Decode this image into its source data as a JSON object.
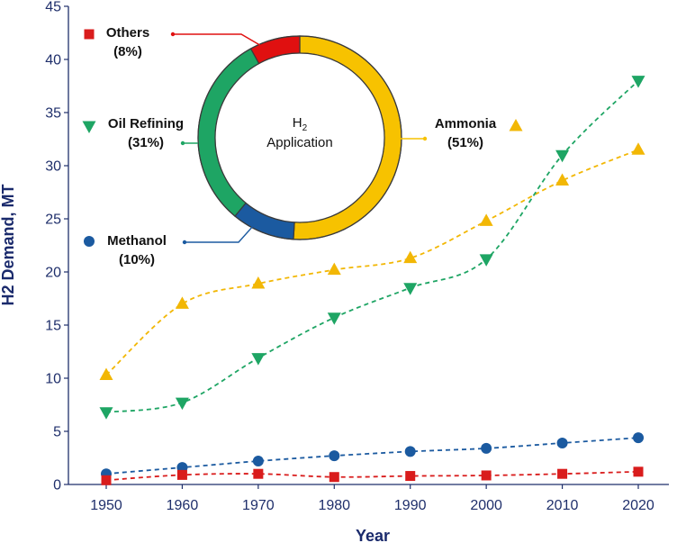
{
  "chart_data": [
    {
      "type": "line",
      "xlabel": "Year",
      "ylabel": "H2 Demand, MT",
      "x": [
        1950,
        1960,
        1970,
        1980,
        1990,
        2000,
        2010,
        2020
      ],
      "xlim": [
        1950,
        2020
      ],
      "ylim": [
        0,
        45
      ],
      "yticks": [
        0,
        5,
        10,
        15,
        20,
        25,
        30,
        35,
        40,
        45
      ],
      "grid": false,
      "series": [
        {
          "name": "Ammonia",
          "color": "#f2b705",
          "marker": "triangle-up",
          "values": [
            10.3,
            17.0,
            18.9,
            20.2,
            21.3,
            24.8,
            28.6,
            31.5
          ]
        },
        {
          "name": "Oil Refining",
          "color": "#1ea564",
          "marker": "triangle-down",
          "values": [
            6.8,
            7.7,
            11.9,
            15.7,
            18.5,
            21.2,
            31.0,
            38.0
          ]
        },
        {
          "name": "Methanol",
          "color": "#1b5aa0",
          "marker": "circle",
          "values": [
            1.0,
            1.6,
            2.2,
            2.7,
            3.1,
            3.4,
            3.9,
            4.4
          ]
        },
        {
          "name": "Others",
          "color": "#d91c1c",
          "marker": "square",
          "values": [
            0.4,
            0.9,
            1.0,
            0.7,
            0.8,
            0.85,
            1.0,
            1.2
          ]
        }
      ]
    },
    {
      "type": "pie",
      "title_main": "H",
      "title_sub": "2",
      "title_line2": "Application",
      "slices": [
        {
          "name": "Ammonia",
          "pct_label": "(51%)",
          "value": 51,
          "color": "#f7c200"
        },
        {
          "name": "Methanol",
          "pct_label": "(10%)",
          "value": 10,
          "color": "#1b5aa0"
        },
        {
          "name": "Oil Refining",
          "pct_label": "(31%)",
          "value": 31,
          "color": "#1ea564"
        },
        {
          "name": "Others",
          "pct_label": "(8%)",
          "value": 8,
          "color": "#e01010"
        }
      ]
    }
  ]
}
